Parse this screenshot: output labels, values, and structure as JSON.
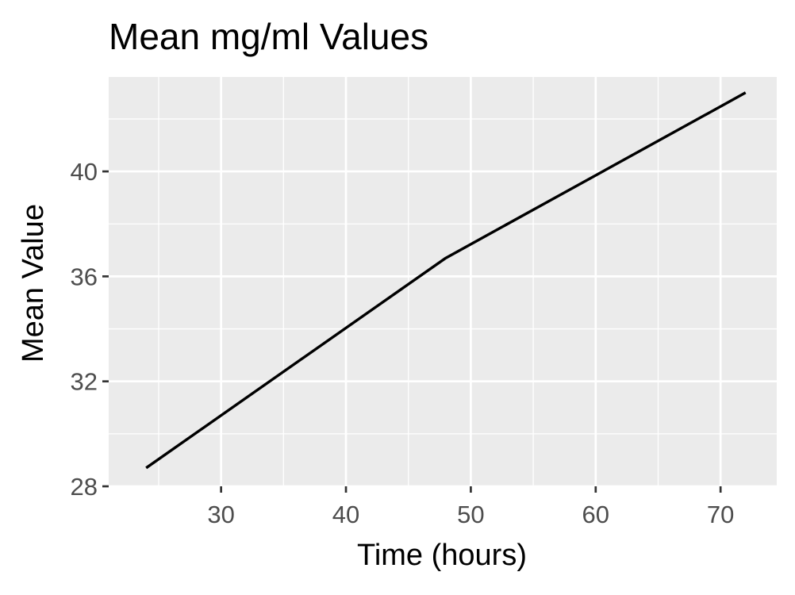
{
  "chart_data": {
    "type": "line",
    "title": "Mean mg/ml Values",
    "xlabel": "Time (hours)",
    "ylabel": "Mean Value",
    "x": [
      24,
      48,
      72
    ],
    "series": [
      {
        "values": [
          28.7,
          36.7,
          43.0
        ]
      }
    ],
    "xlim": [
      21,
      74.5
    ],
    "ylim": [
      28,
      43.6
    ],
    "x_major_ticks": [
      30,
      40,
      50,
      60,
      70
    ],
    "x_tick_labels": [
      "30",
      "40",
      "50",
      "60",
      "70"
    ],
    "x_minor_ticks": [
      25,
      35,
      45,
      55,
      65
    ],
    "y_major_ticks": [
      28,
      32,
      36,
      40
    ],
    "y_tick_labels": [
      "28",
      "32",
      "36",
      "40"
    ],
    "y_minor_ticks": [
      30,
      34,
      38,
      42
    ],
    "grid": true,
    "legend": "none",
    "colors": {
      "panel_background": "#ebebeb",
      "grid": "#ffffff",
      "line": "#000000",
      "tick_text": "#4d4d4d",
      "tick_mark": "#333333"
    }
  }
}
